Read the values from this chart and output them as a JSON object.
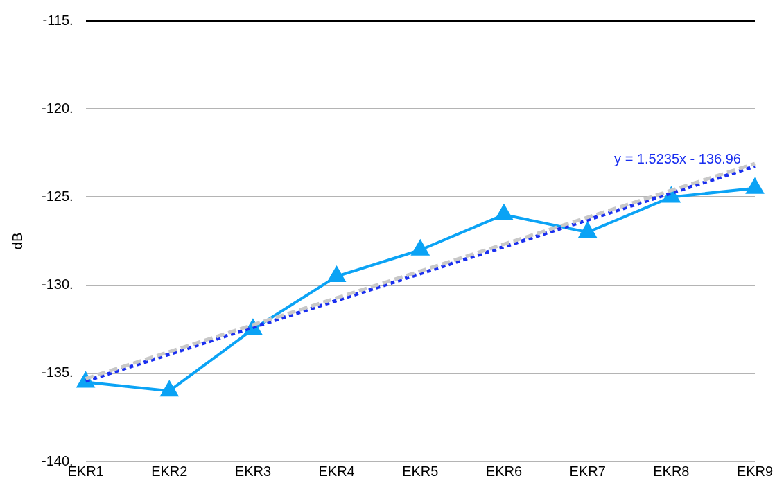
{
  "chart_data": {
    "type": "line",
    "ylabel": "dB",
    "categories": [
      "EKR1",
      "EKR2",
      "EKR3",
      "EKR4",
      "EKR5",
      "EKR6",
      "EKR7",
      "EKR8",
      "EKR9"
    ],
    "series": [
      {
        "color": "#0ba3f5",
        "values": [
          -135.5,
          -136,
          -132.5,
          -129.5,
          -128,
          -126,
          -127,
          -125,
          -124.5
        ],
        "marker": "triangle",
        "line_style": "solid"
      },
      {
        "type": "line",
        "color": "#c8c8c8",
        "x": [
          "EKR1",
          "EKR9"
        ],
        "values": [
          -135.3,
          -123.1
        ],
        "marker": "none",
        "line_style": "dashed"
      },
      {
        "type": "line",
        "color": "#1a2ff0",
        "x": [
          "EKR1",
          "EKR9"
        ],
        "values": [
          -135.44,
          -123.25
        ],
        "marker": "none",
        "line_style": "dotted"
      }
    ],
    "ylim": [
      -140,
      -115
    ],
    "yticks": [
      {
        "value": -140,
        "label": "-140."
      },
      {
        "value": -135,
        "label": "-135."
      },
      {
        "value": -130,
        "label": "-130."
      },
      {
        "value": -125,
        "label": "-125."
      },
      {
        "value": -120,
        "label": "-120."
      },
      {
        "value": -115,
        "label": "-115."
      }
    ],
    "grid": "y",
    "legend": false,
    "annotations": [
      "y = 1.5235x - 136.96"
    ]
  }
}
